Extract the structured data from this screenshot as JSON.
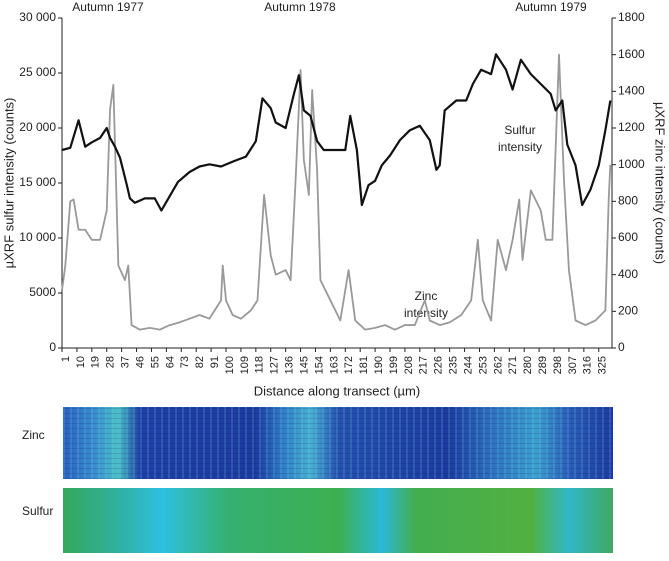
{
  "chart_data": {
    "type": "line",
    "annotations": [
      "Autumn 1977",
      "Autumn 1978",
      "Autumn 1979",
      "Sulfur",
      "intensity",
      "Zinc",
      "intensity"
    ],
    "xlabel": "Distance along transect (µm)",
    "ylabel": "µXRF sulfur intensity (counts)",
    "y2label": "µXRF zinc intensity (counts)",
    "xlim": [
      1,
      333
    ],
    "xticks": [
      1,
      10,
      19,
      28,
      37,
      46,
      55,
      64,
      73,
      82,
      91,
      100,
      109,
      118,
      127,
      136,
      145,
      154,
      163,
      172,
      181,
      190,
      199,
      208,
      217,
      226,
      235,
      244,
      253,
      262,
      271,
      280,
      289,
      298,
      307,
      316,
      325
    ],
    "ylim": [
      0,
      30000
    ],
    "yticks": [
      0,
      5000,
      {
        "value": 10000,
        "label": "10 000"
      },
      {
        "value": 15000,
        "label": "15 000"
      },
      {
        "value": 20000,
        "label": "20 000"
      },
      {
        "value": 25000,
        "label": "25 000"
      },
      {
        "value": 30000,
        "label": "30 000"
      }
    ],
    "y2lim": [
      0,
      1800
    ],
    "y2ticks": [
      0,
      200,
      400,
      600,
      800,
      1000,
      1200,
      1400,
      1600,
      1800
    ],
    "series": [
      {
        "color": "#111111",
        "x": [
          1,
          6,
          11,
          15,
          19,
          24,
          28,
          30,
          33,
          36,
          40,
          42,
          45,
          51,
          57,
          61,
          66,
          71,
          78,
          84,
          90,
          97,
          105,
          112,
          118,
          122,
          127,
          130,
          136,
          141,
          144,
          147,
          151,
          155,
          159,
          166,
          172,
          175,
          179,
          182,
          186,
          190,
          194,
          199,
          205,
          211,
          217,
          223,
          227,
          229,
          232,
          239,
          245,
          249,
          254,
          260,
          263,
          269,
          273,
          278,
          284,
          290,
          296,
          299,
          303,
          306,
          311,
          315,
          320,
          325,
          329,
          332
        ],
        "values": [
          18000,
          18200,
          20700,
          18300,
          18700,
          19100,
          20000,
          19100,
          18300,
          17300,
          14900,
          13600,
          13200,
          13600,
          13600,
          12500,
          13800,
          15100,
          16000,
          16500,
          16700,
          16500,
          17000,
          17400,
          18800,
          22700,
          21800,
          20500,
          20000,
          23100,
          24800,
          21600,
          21100,
          18800,
          18000,
          18000,
          18000,
          21100,
          18000,
          13000,
          14800,
          15200,
          16600,
          17500,
          18900,
          19800,
          20200,
          18900,
          16200,
          16600,
          21600,
          22500,
          22500,
          24000,
          25300,
          24900,
          26700,
          25300,
          23500,
          26200,
          24900,
          24000,
          23100,
          21600,
          22500,
          18500,
          16600,
          13000,
          14400,
          16600,
          19800,
          22500
        ]
      },
      {
        "color": "#999999",
        "axis": "y2",
        "x": [
          1,
          3,
          6,
          8,
          11,
          15,
          19,
          24,
          28,
          30,
          32,
          35,
          39,
          41,
          43,
          48,
          54,
          60,
          66,
          72,
          78,
          84,
          90,
          97,
          98,
          100,
          104,
          109,
          115,
          119,
          123,
          127,
          130,
          136,
          139,
          142,
          145,
          147,
          150,
          152,
          155,
          157,
          163,
          169,
          174,
          178,
          184,
          190,
          196,
          202,
          208,
          214,
          220,
          223,
          229,
          235,
          242,
          248,
          252,
          255,
          260,
          264,
          269,
          273,
          277,
          279,
          284,
          290,
          293,
          297,
          301,
          304,
          307,
          311,
          317,
          323,
          329,
          331,
          332
        ],
        "values": [
          316,
          450,
          800,
          810,
          645,
          645,
          590,
          590,
          750,
          1300,
          1435,
          450,
          370,
          450,
          125,
          100,
          110,
          100,
          125,
          140,
          160,
          180,
          160,
          260,
          450,
          260,
          180,
          160,
          205,
          260,
          835,
          505,
          400,
          425,
          370,
          915,
          1516,
          1025,
          835,
          1407,
          970,
          370,
          260,
          150,
          425,
          150,
          100,
          110,
          125,
          100,
          125,
          125,
          260,
          150,
          125,
          140,
          180,
          260,
          590,
          260,
          150,
          590,
          425,
          590,
          810,
          480,
          860,
          750,
          590,
          590,
          1600,
          920,
          425,
          150,
          125,
          150,
          205,
          810,
          1000
        ]
      }
    ]
  },
  "panels": [
    {
      "label": "Zinc"
    },
    {
      "label": "Sulfur"
    }
  ]
}
